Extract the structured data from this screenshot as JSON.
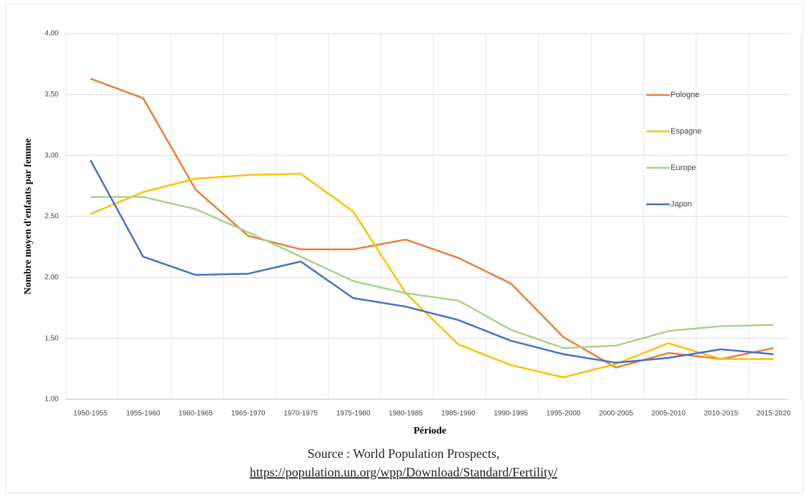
{
  "chart_data": {
    "type": "line",
    "ylabel": "Nombre moyen d'enfants par femme",
    "xlabel": "Période",
    "categories": [
      "1950-1955",
      "1955-1960",
      "1960-1965",
      "1965-1970",
      "1970-1975",
      "1975-1980",
      "1980-1985",
      "1985-1990",
      "1990-1995",
      "1995-2000",
      "2000-2005",
      "2005-2010",
      "2010-2015",
      "2015-2020"
    ],
    "series": [
      {
        "name": "Pologne",
        "color": "#ed7d31",
        "values": [
          3.63,
          3.47,
          2.72,
          2.34,
          2.23,
          2.23,
          2.31,
          2.16,
          1.95,
          1.51,
          1.26,
          1.38,
          1.33,
          1.42
        ]
      },
      {
        "name": "Espagne",
        "color": "#ffc000",
        "values": [
          2.52,
          2.7,
          2.81,
          2.84,
          2.85,
          2.54,
          1.87,
          1.45,
          1.28,
          1.18,
          1.29,
          1.46,
          1.33,
          1.33
        ]
      },
      {
        "name": "Europe",
        "color": "#a9d18e",
        "values": [
          2.66,
          2.66,
          2.56,
          2.37,
          2.17,
          1.97,
          1.87,
          1.81,
          1.57,
          1.42,
          1.44,
          1.56,
          1.6,
          1.61
        ]
      },
      {
        "name": "Japon",
        "color": "#4472c4",
        "values": [
          2.96,
          2.17,
          2.02,
          2.03,
          2.13,
          1.83,
          1.76,
          1.65,
          1.48,
          1.37,
          1.3,
          1.34,
          1.41,
          1.37
        ]
      }
    ],
    "ylim": [
      1,
      4
    ],
    "yticks": [
      {
        "value": 1,
        "label": "1,00"
      },
      {
        "value": 1.5,
        "label": "1,50"
      },
      {
        "value": 2,
        "label": "2,00"
      },
      {
        "value": 2.5,
        "label": "2,50"
      },
      {
        "value": 3,
        "label": "3,00"
      },
      {
        "value": 3.5,
        "label": "3,50"
      },
      {
        "value": 4,
        "label": "4,00"
      }
    ],
    "grid": true,
    "legend": "right"
  },
  "source": {
    "text": "Source : World Population Prospects,",
    "link": "https://population.un.org/wpp/Download/Standard/Fertility/"
  }
}
